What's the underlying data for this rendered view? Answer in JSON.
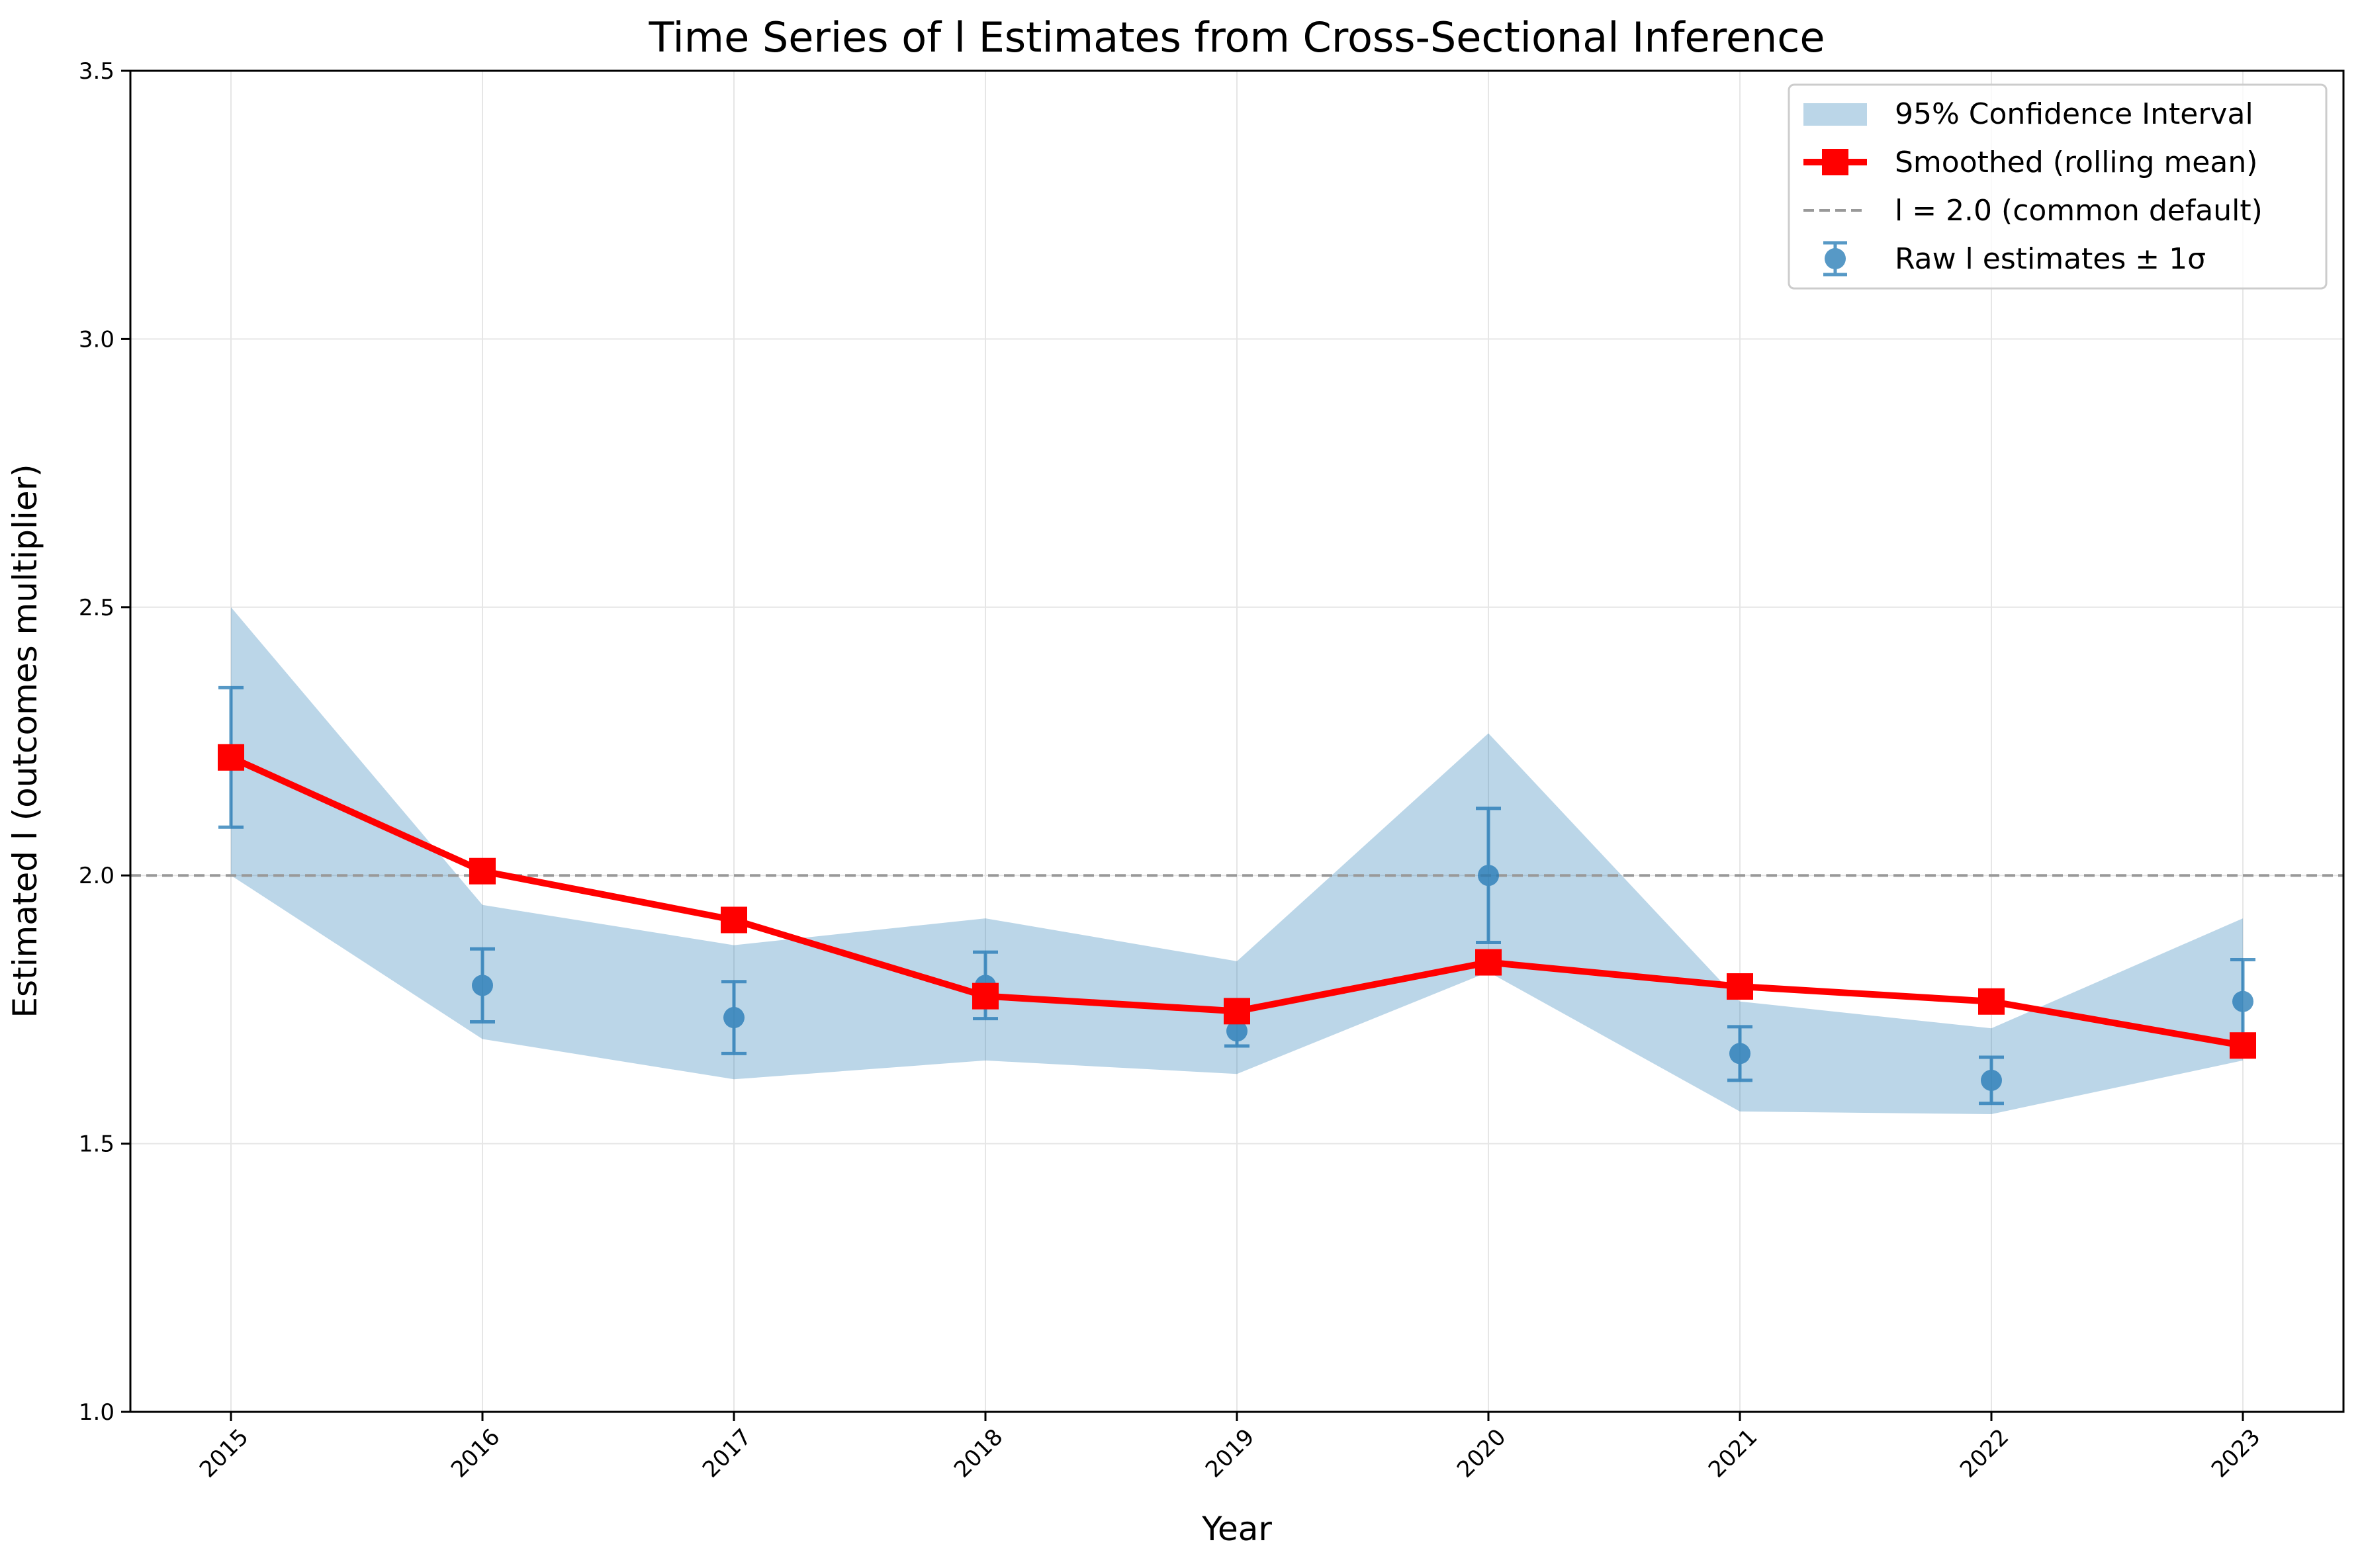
{
  "chart_data": {
    "type": "line",
    "title": "Time Series of l Estimates from Cross-Sectional Inference",
    "xlabel": "Year",
    "ylabel": "Estimated l (outcomes multiplier)",
    "x": [
      2015,
      2016,
      2017,
      2018,
      2019,
      2020,
      2021,
      2022,
      2023
    ],
    "xtick_labels": [
      "2015",
      "2016",
      "2017",
      "2018",
      "2019",
      "2020",
      "2021",
      "2022",
      "2023"
    ],
    "ylim": [
      1.0,
      3.5
    ],
    "ytick_labels": [
      "1.0",
      "1.5",
      "2.0",
      "2.5",
      "3.0",
      "3.5"
    ],
    "grid": true,
    "legend_position": "top-right",
    "series": [
      {
        "name": "Raw l estimates ± 1σ",
        "kind": "errorbar",
        "color": "#1f77b4",
        "values": [
          2.22,
          1.795,
          1.735,
          1.795,
          1.71,
          2.0,
          1.668,
          1.618,
          1.765
        ],
        "sigma": [
          0.13,
          0.068,
          0.067,
          0.062,
          0.028,
          0.125,
          0.05,
          0.043,
          0.078
        ]
      },
      {
        "name": "95% Confidence Interval",
        "kind": "band",
        "color": "#1f77b4",
        "lower": [
          2.0,
          1.695,
          1.62,
          1.655,
          1.63,
          1.82,
          1.56,
          1.555,
          1.655
        ],
        "upper": [
          2.5,
          1.945,
          1.87,
          1.92,
          1.84,
          2.265,
          1.765,
          1.715,
          1.92
        ]
      },
      {
        "name": "Smoothed (rolling mean)",
        "kind": "line",
        "color": "#ff0000",
        "marker": "square",
        "values": [
          2.22,
          2.008,
          1.917,
          1.775,
          1.747,
          1.838,
          1.793,
          1.765,
          1.683
        ]
      },
      {
        "name": "l = 2.0 (common default)",
        "kind": "hline",
        "color": "#999999",
        "value": 2.0
      }
    ]
  }
}
